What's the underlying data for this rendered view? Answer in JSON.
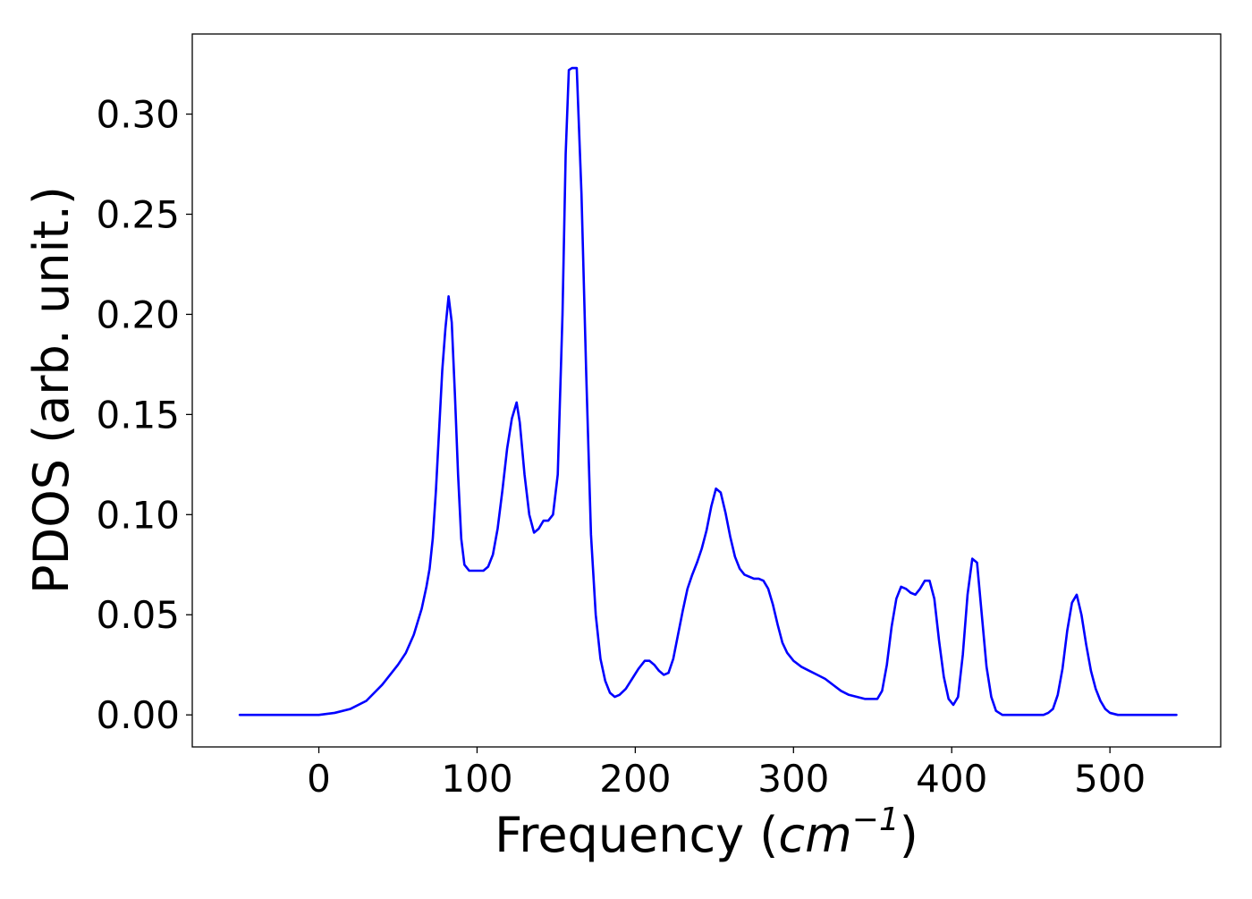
{
  "chart_data": {
    "type": "line",
    "title": "",
    "xlabel": "Frequency (cm⁻¹)",
    "xlabel_parts": {
      "prefix": "Frequency (",
      "var": "cm",
      "sup": "−1",
      "suffix": ")"
    },
    "ylabel": "PDOS (arb. unit.)",
    "xlim": [
      -80,
      570
    ],
    "ylim": [
      -0.016,
      0.34
    ],
    "xticks": [
      0,
      100,
      200,
      300,
      400,
      500
    ],
    "xtick_labels": [
      "0",
      "100",
      "200",
      "300",
      "400",
      "500"
    ],
    "yticks": [
      0.0,
      0.05,
      0.1,
      0.15,
      0.2,
      0.25,
      0.3
    ],
    "ytick_labels": [
      "0.00",
      "0.05",
      "0.10",
      "0.15",
      "0.20",
      "0.25",
      "0.30"
    ],
    "grid": false,
    "legend": "none",
    "series": [
      {
        "color": "#0000ff",
        "x": [
          -50,
          -30,
          -10,
          0,
          10,
          20,
          30,
          40,
          50,
          55,
          60,
          65,
          68,
          70,
          72,
          74,
          76,
          78,
          80,
          82,
          84,
          86,
          88,
          90,
          92,
          95,
          100,
          104,
          107,
          110,
          113,
          116,
          119,
          122,
          125,
          127,
          130,
          133,
          136,
          139,
          142,
          145,
          148,
          151,
          154,
          156,
          158,
          160,
          163,
          166,
          169,
          172,
          175,
          178,
          181,
          184,
          187,
          190,
          194,
          198,
          202,
          206,
          209,
          212,
          215,
          218,
          221,
          224,
          227,
          230,
          233,
          236,
          239,
          242,
          245,
          248,
          251,
          254,
          257,
          260,
          263,
          266,
          269,
          272,
          275,
          278,
          281,
          284,
          287,
          290,
          293,
          296,
          300,
          305,
          310,
          315,
          320,
          325,
          330,
          335,
          340,
          345,
          350,
          353,
          356,
          359,
          362,
          365,
          368,
          371,
          374,
          377,
          380,
          383,
          386,
          389,
          392,
          395,
          398,
          401,
          404,
          407,
          410,
          413,
          416,
          419,
          422,
          425,
          428,
          432,
          440,
          450,
          458,
          461,
          464,
          467,
          470,
          473,
          476,
          479,
          482,
          485,
          488,
          491,
          494,
          497,
          500,
          505,
          515,
          530,
          542
        ],
        "y": [
          0.0,
          0.0,
          0.0,
          0.0,
          0.001,
          0.003,
          0.007,
          0.015,
          0.025,
          0.031,
          0.04,
          0.053,
          0.064,
          0.073,
          0.088,
          0.112,
          0.142,
          0.172,
          0.193,
          0.209,
          0.196,
          0.16,
          0.12,
          0.088,
          0.075,
          0.072,
          0.072,
          0.072,
          0.074,
          0.08,
          0.093,
          0.112,
          0.133,
          0.148,
          0.156,
          0.146,
          0.12,
          0.1,
          0.091,
          0.093,
          0.097,
          0.097,
          0.1,
          0.12,
          0.2,
          0.28,
          0.322,
          0.323,
          0.323,
          0.26,
          0.17,
          0.09,
          0.05,
          0.028,
          0.017,
          0.011,
          0.009,
          0.01,
          0.013,
          0.018,
          0.023,
          0.027,
          0.027,
          0.025,
          0.022,
          0.02,
          0.021,
          0.028,
          0.04,
          0.052,
          0.063,
          0.07,
          0.076,
          0.083,
          0.092,
          0.104,
          0.113,
          0.111,
          0.101,
          0.089,
          0.079,
          0.073,
          0.07,
          0.069,
          0.068,
          0.068,
          0.067,
          0.063,
          0.055,
          0.045,
          0.036,
          0.031,
          0.027,
          0.024,
          0.022,
          0.02,
          0.018,
          0.015,
          0.012,
          0.01,
          0.009,
          0.008,
          0.008,
          0.008,
          0.012,
          0.025,
          0.044,
          0.058,
          0.064,
          0.063,
          0.061,
          0.06,
          0.063,
          0.067,
          0.067,
          0.058,
          0.037,
          0.019,
          0.008,
          0.005,
          0.009,
          0.03,
          0.06,
          0.078,
          0.076,
          0.05,
          0.024,
          0.009,
          0.002,
          0.0,
          0.0,
          0.0,
          0.0,
          0.001,
          0.003,
          0.01,
          0.023,
          0.042,
          0.056,
          0.06,
          0.05,
          0.035,
          0.022,
          0.013,
          0.007,
          0.003,
          0.001,
          0.0,
          0.0,
          0.0,
          0.0
        ]
      }
    ]
  }
}
